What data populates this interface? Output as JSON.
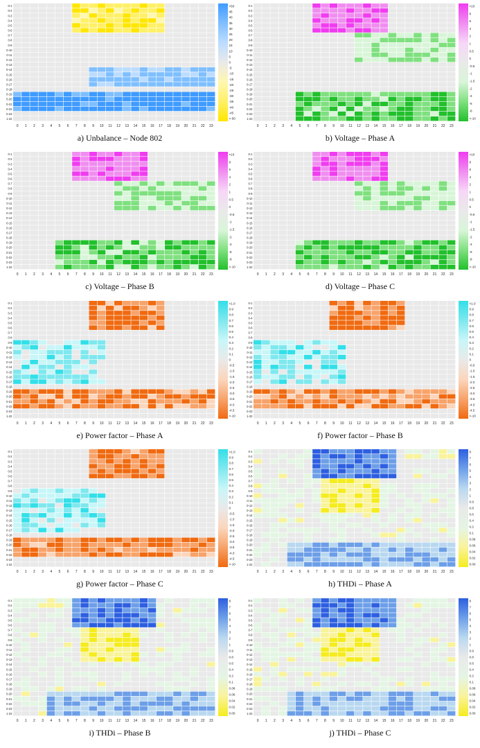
{
  "chart_data": [
    {
      "type": "heatmap",
      "caption": "a) Unbalance – Node 802",
      "palette": "unbalance",
      "rows": [
        "0-1",
        "0-2",
        "0-3",
        "0-4",
        "0-5",
        "0-6",
        "0-7",
        "0-8",
        "0-9",
        "0-10",
        "0-11",
        "0-12",
        "0-13",
        "0-14",
        "0-15",
        "0-16",
        "0-17",
        "0-18",
        "0-19",
        "0-20",
        "0-21",
        "0-22",
        "0-23",
        "1-22"
      ],
      "columns": [
        "0",
        "1",
        "2",
        "3",
        "4",
        "5",
        "6",
        "7",
        "8",
        "9",
        "10",
        "11",
        "12",
        "13",
        "14",
        "15",
        "16",
        "17",
        "18",
        "19",
        "20",
        "21",
        "22",
        "23"
      ],
      "legend_ticks": [
        ">50",
        "45",
        "40",
        "35",
        "30",
        "25",
        "20",
        "15",
        "10",
        "5",
        "0",
        "-5",
        "-10",
        "-15",
        "-20",
        "-25",
        "-30",
        "-35",
        "-40",
        "-45",
        "<-50"
      ],
      "seed": 11
    },
    {
      "type": "heatmap",
      "caption": "b) Voltage – Phase A",
      "palette": "voltage",
      "rows": [
        "0-1",
        "0-2",
        "0-3",
        "0-4",
        "0-5",
        "0-6",
        "0-7",
        "0-8",
        "0-9",
        "0-10",
        "0-11",
        "0-12",
        "0-13",
        "0-14",
        "0-15",
        "0-16",
        "0-17",
        "0-18",
        "0-19",
        "0-20",
        "0-21",
        "0-22",
        "0-23",
        "1-22"
      ],
      "columns": [
        "0",
        "1",
        "2",
        "3",
        "4",
        "5",
        "6",
        "7",
        "8",
        "9",
        "10",
        "11",
        "12",
        "13",
        "14",
        "15",
        "16",
        "17",
        "18",
        "19",
        "20",
        "21",
        "22",
        "23"
      ],
      "legend_ticks": [
        ">10",
        "8",
        "6",
        "4",
        "2",
        "1",
        "0.5",
        "0",
        "-0.5",
        "-1",
        "-1.5",
        "-2",
        "-4",
        "-6",
        "-8",
        "<-10"
      ],
      "seed": 23
    },
    {
      "type": "heatmap",
      "caption": "c) Voltage – Phase B",
      "palette": "voltage",
      "rows": [
        "0-1",
        "0-2",
        "0-3",
        "0-4",
        "0-5",
        "0-6",
        "0-7",
        "0-8",
        "0-9",
        "0-10",
        "0-11",
        "0-12",
        "0-13",
        "0-14",
        "0-15",
        "0-16",
        "0-17",
        "0-18",
        "0-19",
        "0-20",
        "0-21",
        "0-22",
        "0-23",
        "1-22"
      ],
      "columns": [
        "0",
        "1",
        "2",
        "3",
        "4",
        "5",
        "6",
        "7",
        "8",
        "9",
        "10",
        "11",
        "12",
        "13",
        "14",
        "15",
        "16",
        "17",
        "18",
        "19",
        "20",
        "21",
        "22",
        "23"
      ],
      "legend_ticks": [
        ">10",
        "8",
        "6",
        "4",
        "2",
        "1",
        "0.5",
        "0",
        "-0.5",
        "-1",
        "-1.5",
        "-2",
        "-4",
        "-6",
        "-8",
        "<-10"
      ],
      "seed": 37
    },
    {
      "type": "heatmap",
      "caption": "d) Voltage – Phase C",
      "palette": "voltage",
      "rows": [
        "0-1",
        "0-2",
        "0-3",
        "0-4",
        "0-5",
        "0-6",
        "0-7",
        "0-8",
        "0-9",
        "0-10",
        "0-11",
        "0-12",
        "0-13",
        "0-14",
        "0-15",
        "0-16",
        "0-17",
        "0-18",
        "0-19",
        "0-20",
        "0-21",
        "0-22",
        "0-23",
        "1-22"
      ],
      "columns": [
        "0",
        "1",
        "2",
        "3",
        "4",
        "5",
        "6",
        "7",
        "8",
        "9",
        "10",
        "11",
        "12",
        "13",
        "14",
        "15",
        "16",
        "17",
        "18",
        "19",
        "20",
        "21",
        "22",
        "23"
      ],
      "legend_ticks": [
        ">10",
        "8",
        "6",
        "4",
        "2",
        "1",
        "0.5",
        "0",
        "-0.5",
        "-1",
        "-1.5",
        "-2",
        "-4",
        "-6",
        "-8",
        "<-10"
      ],
      "seed": 41
    },
    {
      "type": "heatmap",
      "caption": "e) Power factor – Phase A",
      "palette": "pf",
      "rows": [
        "0-1",
        "0-2",
        "0-3",
        "0-4",
        "0-5",
        "0-6",
        "0-7",
        "0-8",
        "0-9",
        "0-10",
        "0-11",
        "0-12",
        "0-13",
        "0-14",
        "0-15",
        "0-16",
        "0-17",
        "0-18",
        "0-19",
        "0-20",
        "0-21",
        "0-22",
        "0-23",
        "1-22"
      ],
      "columns": [
        "0",
        "1",
        "2",
        "3",
        "4",
        "5",
        "6",
        "7",
        "8",
        "9",
        "10",
        "11",
        "12",
        "13",
        "14",
        "15",
        "16",
        "17",
        "18",
        "19",
        "20",
        "21",
        "22",
        "23"
      ],
      "legend_ticks": [
        ">1.0",
        "0.9",
        "0.8",
        "0.7",
        "0.6",
        "0.5",
        "0.4",
        "0.3",
        "0.2",
        "0.1",
        "0",
        "-0.5",
        "-1.0",
        "-1.5",
        "-2.0",
        "-2.5",
        "-3.0",
        "-3.5",
        "-4.0",
        "-4.5",
        "<-10"
      ],
      "seed": 53
    },
    {
      "type": "heatmap",
      "caption": "f) Power factor – Phase B",
      "palette": "pf",
      "rows": [
        "0-1",
        "0-2",
        "0-3",
        "0-4",
        "0-5",
        "0-6",
        "0-7",
        "0-8",
        "0-9",
        "0-10",
        "0-11",
        "0-12",
        "0-13",
        "0-14",
        "0-15",
        "0-16",
        "0-17",
        "0-18",
        "0-19",
        "0-20",
        "0-21",
        "0-22",
        "0-23",
        "1-22"
      ],
      "columns": [
        "0",
        "1",
        "2",
        "3",
        "4",
        "5",
        "6",
        "7",
        "8",
        "9",
        "10",
        "11",
        "12",
        "13",
        "14",
        "15",
        "16",
        "17",
        "18",
        "19",
        "20",
        "21",
        "22",
        "23"
      ],
      "legend_ticks": [
        ">1.0",
        "0.9",
        "0.8",
        "0.7",
        "0.6",
        "0.5",
        "0.4",
        "0.3",
        "0.2",
        "0.1",
        "0",
        "-0.5",
        "-1.0",
        "-1.5",
        "-2.0",
        "-2.5",
        "-3.0",
        "-3.5",
        "-4.0",
        "-4.5",
        "<-10"
      ],
      "seed": 67
    },
    {
      "type": "heatmap",
      "caption": "g) Power factor – Phase C",
      "palette": "pf",
      "rows": [
        "0-1",
        "0-2",
        "0-3",
        "0-4",
        "0-5",
        "0-6",
        "0-7",
        "0-8",
        "0-9",
        "0-10",
        "0-11",
        "0-12",
        "0-13",
        "0-14",
        "0-15",
        "0-16",
        "0-17",
        "0-18",
        "0-19",
        "0-20",
        "0-21",
        "0-22",
        "0-23",
        "1-22"
      ],
      "columns": [
        "0",
        "1",
        "2",
        "3",
        "4",
        "5",
        "6",
        "7",
        "8",
        "9",
        "10",
        "11",
        "12",
        "13",
        "14",
        "15",
        "16",
        "17",
        "18",
        "19",
        "20",
        "21",
        "22",
        "23"
      ],
      "legend_ticks": [
        ">1.0",
        "0.9",
        "0.8",
        "0.7",
        "0.6",
        "0.5",
        "0.4",
        "0.3",
        "0.2",
        "0.1",
        "0",
        "-0.5",
        "-1.0",
        "-1.5",
        "-2.0",
        "-2.5",
        "-3.0",
        "-3.5",
        "-4.0",
        "-4.5",
        "<-10"
      ],
      "seed": 79
    },
    {
      "type": "heatmap",
      "caption": "h) THDi – Phase A",
      "palette": "thd",
      "rows": [
        "0-1",
        "0-2",
        "0-3",
        "0-4",
        "0-5",
        "0-6",
        "0-7",
        "0-8",
        "0-9",
        "0-10",
        "0-11",
        "0-12",
        "0-13",
        "0-14",
        "0-15",
        "0-16",
        "0-17",
        "0-18",
        "0-19",
        "0-20",
        "0-21",
        "0-22",
        "0-23",
        "1-22"
      ],
      "columns": [
        "0",
        "1",
        "2",
        "3",
        "4",
        "5",
        "6",
        "7",
        "8",
        "9",
        "10",
        "11",
        "12",
        "13",
        "14",
        "15",
        "16",
        "17",
        "18",
        "19",
        "20",
        "21",
        "22",
        "23"
      ],
      "legend_ticks": [
        "8",
        "7",
        "6",
        "5",
        "4",
        "3",
        "2",
        "1",
        "0.9",
        "0.8",
        "0.6",
        "0.4",
        "0.2",
        "0.1",
        "0.08",
        "0.06",
        "0.04",
        "0.02",
        "0.00"
      ],
      "seed": 83
    },
    {
      "type": "heatmap",
      "caption": "i) THDi – Phase B",
      "palette": "thd",
      "rows": [
        "0-1",
        "0-2",
        "0-3",
        "0-4",
        "0-5",
        "0-6",
        "0-7",
        "0-8",
        "0-9",
        "0-10",
        "0-11",
        "0-12",
        "0-13",
        "0-14",
        "0-15",
        "0-16",
        "0-17",
        "0-18",
        "0-19",
        "0-20",
        "0-21",
        "0-22",
        "0-23",
        "1-22"
      ],
      "columns": [
        "0",
        "1",
        "2",
        "3",
        "4",
        "5",
        "6",
        "7",
        "8",
        "9",
        "10",
        "11",
        "12",
        "13",
        "14",
        "15",
        "16",
        "17",
        "18",
        "19",
        "20",
        "21",
        "22",
        "23"
      ],
      "legend_ticks": [
        "8",
        "7",
        "6",
        "5",
        "4",
        "3",
        "2",
        "1",
        "0.9",
        "0.8",
        "0.6",
        "0.4",
        "0.2",
        "0.1",
        "0.08",
        "0.06",
        "0.04",
        "0.02",
        "0.00"
      ],
      "seed": 97
    },
    {
      "type": "heatmap",
      "caption": "j) THDi – Phase C",
      "palette": "thd",
      "rows": [
        "0-1",
        "0-2",
        "0-3",
        "0-4",
        "0-5",
        "0-6",
        "0-7",
        "0-8",
        "0-9",
        "0-10",
        "0-11",
        "0-12",
        "0-13",
        "0-14",
        "0-15",
        "0-16",
        "0-17",
        "0-18",
        "0-19",
        "0-20",
        "0-21",
        "0-22",
        "0-23",
        "1-22"
      ],
      "columns": [
        "0",
        "1",
        "2",
        "3",
        "4",
        "5",
        "6",
        "7",
        "8",
        "9",
        "10",
        "11",
        "12",
        "13",
        "14",
        "15",
        "16",
        "17",
        "18",
        "19",
        "20",
        "21",
        "22",
        "23"
      ],
      "legend_ticks": [
        "8",
        "7",
        "6",
        "5",
        "4",
        "3",
        "2",
        "1",
        "0.9",
        "0.8",
        "0.6",
        "0.4",
        "0.2",
        "0.1",
        "0.08",
        "0.06",
        "0.04",
        "0.02",
        "0.00"
      ],
      "seed": 101
    }
  ],
  "palettes": {
    "unbalance": [
      "#ffe600",
      "#fff066",
      "#fff7b0",
      "#e9e9e9",
      "#bcdcff",
      "#7fbfff",
      "#3f9bff"
    ],
    "voltage": [
      "#22c02c",
      "#7fe07f",
      "#d9f5d9",
      "#e9e9e9",
      "#f7d6f7",
      "#f08ef0",
      "#f03cf0"
    ],
    "pf": [
      "#f06a10",
      "#f7a36a",
      "#fbd6bc",
      "#e9e9e9",
      "#c8f6f8",
      "#7fe8ee",
      "#33dfe8"
    ],
    "thd": [
      "#f5ec1f",
      "#f9f39a",
      "#e4f5e4",
      "#e9e9e9",
      "#b9d8f0",
      "#6d9fe8",
      "#2d5fe0"
    ]
  }
}
